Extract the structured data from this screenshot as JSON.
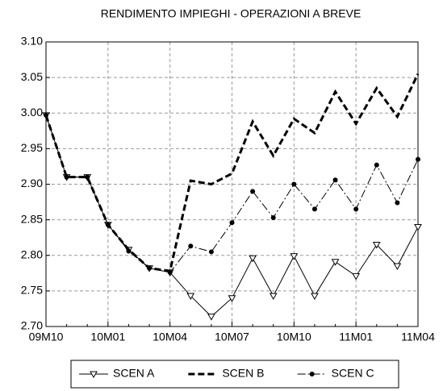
{
  "chart_data": {
    "type": "line",
    "title": "RENDIMENTO IMPIEGHI - OPERAZIONI A BREVE",
    "categories": [
      "09M10",
      null,
      null,
      "10M01",
      null,
      null,
      "10M04",
      null,
      null,
      "10M07",
      null,
      null,
      "10M10",
      null,
      null,
      "11M01",
      null,
      null,
      "11M04"
    ],
    "series": [
      {
        "name": "SCEN A",
        "color": "#000000",
        "dash": "solid",
        "marker": "triangle-down",
        "values": [
          2.997,
          2.91,
          2.91,
          2.843,
          2.808,
          2.782,
          2.776,
          2.743,
          2.714,
          2.74,
          2.796,
          2.743,
          2.799,
          2.743,
          2.791,
          2.771,
          2.815,
          2.785,
          2.84
        ]
      },
      {
        "name": "SCEN B",
        "color": "#000000",
        "dash": "dashed",
        "marker": "none",
        "values": [
          2.997,
          2.91,
          2.91,
          2.843,
          2.808,
          2.782,
          2.778,
          2.905,
          2.9,
          2.915,
          2.988,
          2.94,
          2.992,
          2.972,
          3.03,
          2.985,
          3.035,
          2.995,
          3.055
        ]
      },
      {
        "name": "SCEN C",
        "color": "#000000",
        "dash": "dashdot",
        "marker": "circle",
        "values": [
          2.997,
          2.91,
          2.91,
          2.843,
          2.806,
          2.782,
          2.776,
          2.813,
          2.805,
          2.846,
          2.89,
          2.853,
          2.9,
          2.865,
          2.906,
          2.865,
          2.927,
          2.874,
          2.935
        ]
      }
    ],
    "ylim": [
      2.7,
      3.1
    ],
    "yticks": [
      {
        "value": 2.7,
        "label": "2.70"
      },
      2.75,
      {
        "value": 2.8,
        "label": "2.80"
      },
      2.85,
      {
        "value": 2.9,
        "label": "2.90"
      },
      2.95,
      {
        "value": 3.0,
        "label": "3.00"
      },
      3.05,
      {
        "value": 3.1,
        "label": "3.10"
      }
    ],
    "grid": true,
    "legend": "bottom"
  }
}
